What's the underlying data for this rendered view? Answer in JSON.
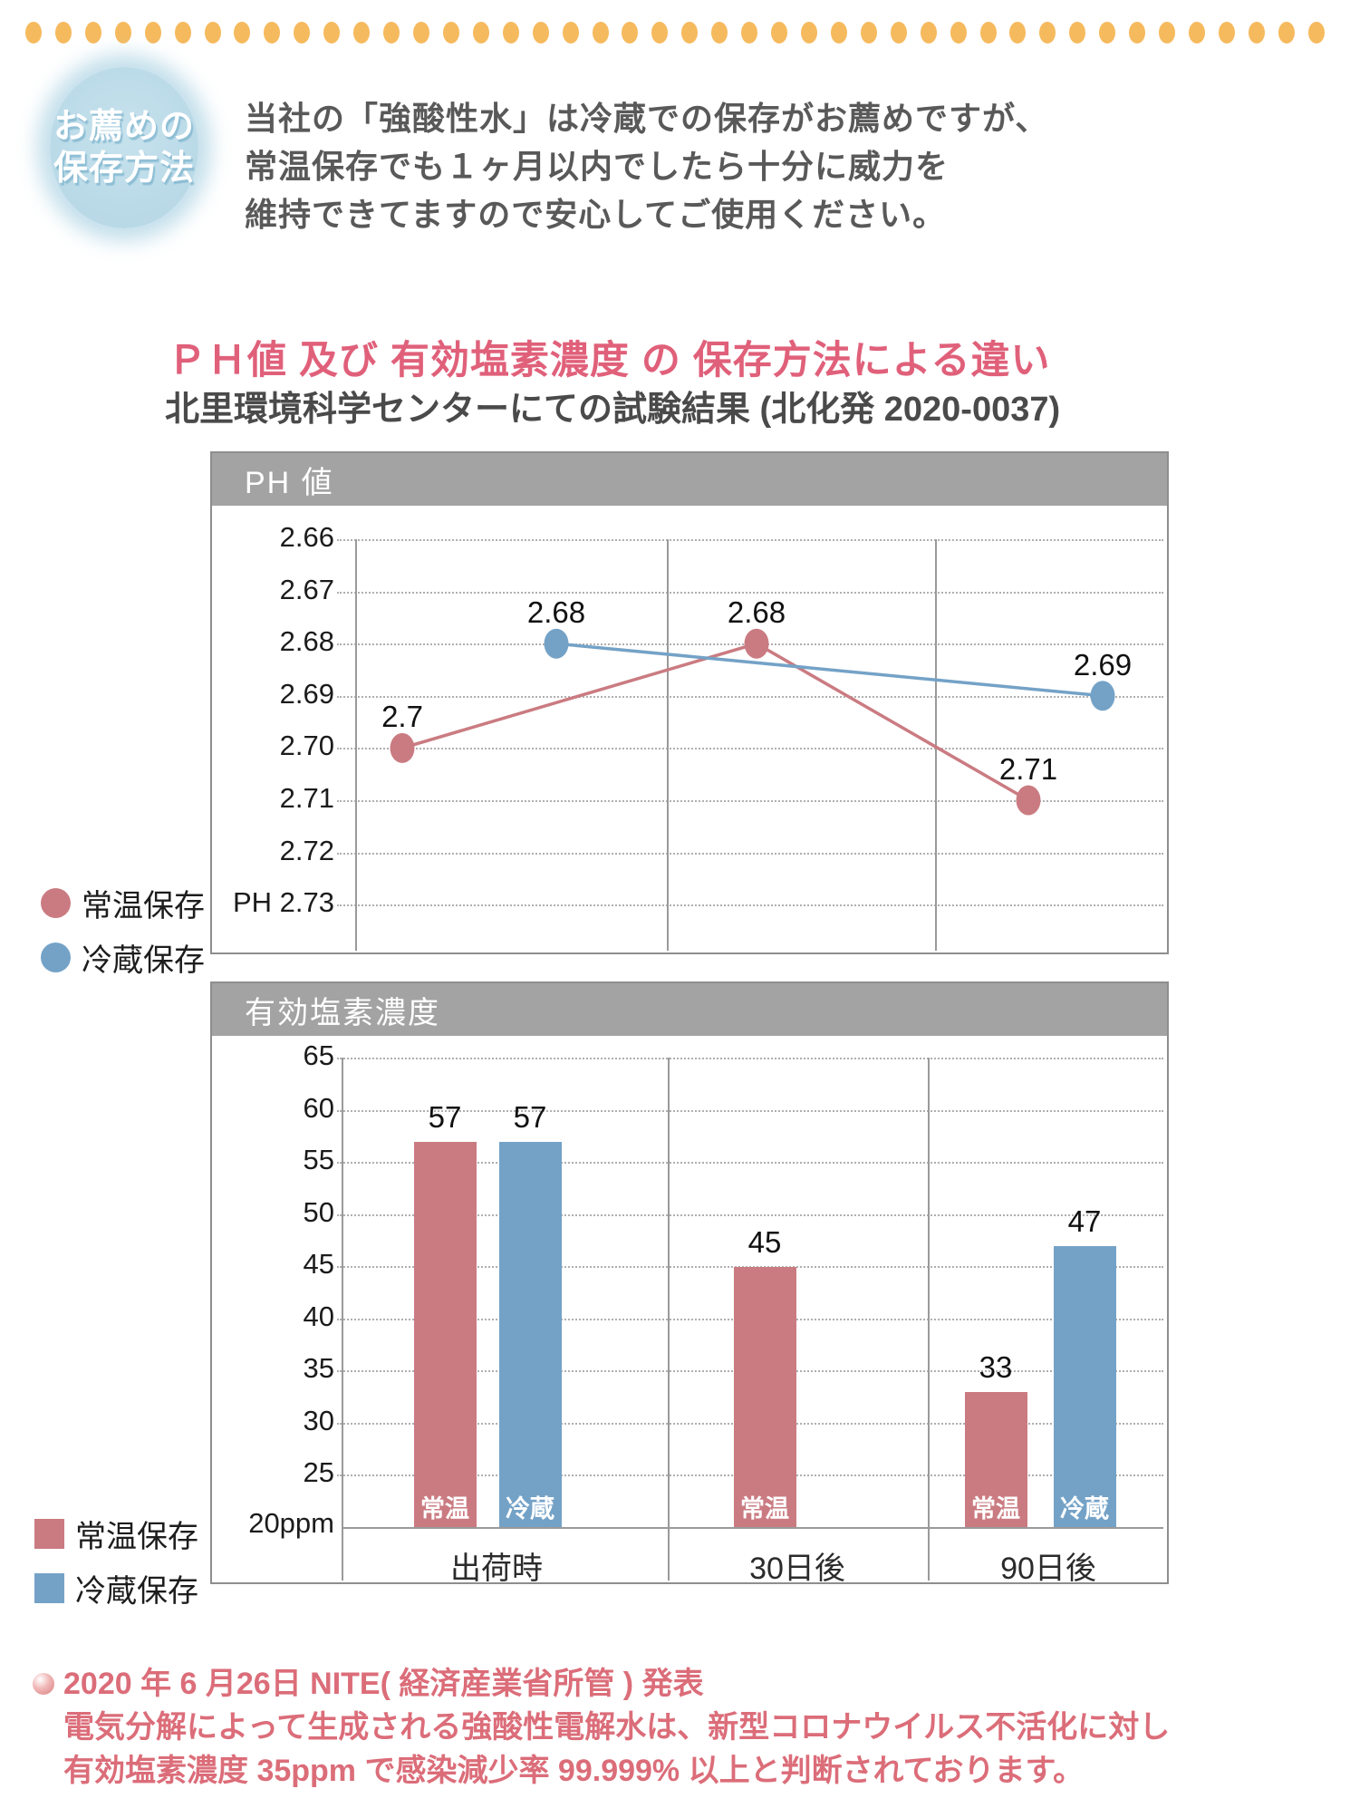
{
  "page": {
    "badge": {
      "line1": "お薦めの",
      "line2": "保存方法"
    },
    "intro_lines": [
      "当社の「強酸性水」は冷蔵での保存がお薦めですが、",
      "常温保存でも１ヶ月以内でしたら十分に威力を",
      "維持できてますので安心してご使用ください。"
    ],
    "title": "ＰＨ値 及び 有効塩素濃度 の 保存方法による違い",
    "subtitle": "北里環境科学センターにての試験結果 (北化発 2020-0037)",
    "note": {
      "line1": "2020 年 6 月26日 NITE( 経済産業省所管 ) 発表",
      "line2": "電気分解によって生成される強酸性電解水は、新型コロナウイルス不活化に対し",
      "line3": "有効塩素濃度 35ppm で感染減少率 99.999% 以上と判断されております。"
    }
  },
  "legend": {
    "room": "常温保存",
    "cold": "冷蔵保存"
  },
  "colors": {
    "red_series": "#CA7B81",
    "blue_series": "#74A2C7",
    "title_pink": "#E0607A",
    "note_pink": "#DB6D79",
    "header_gray": "#A3A3A3",
    "dot_orange": "#F6BA5E"
  },
  "decoration": {
    "dot_count": 44
  },
  "chart_data": [
    {
      "type": "line",
      "title": "PH 値",
      "categories": [
        "出荷時",
        "30日後",
        "90日後"
      ],
      "y_ticks": [
        "2.66",
        "2.67",
        "2.68",
        "2.69",
        "2.70",
        "2.71",
        "2.72",
        "PH 2.73"
      ],
      "ylim": [
        2.66,
        2.73
      ],
      "y_axis_inverted": true,
      "grid": true,
      "legend_position": "left-bottom",
      "series": [
        {
          "name": "常温保存",
          "color_key": "red_series",
          "marker": "circle",
          "values": [
            2.7,
            2.68,
            2.71
          ],
          "labels": [
            "2.7",
            "2.68",
            "2.71"
          ]
        },
        {
          "name": "冷蔵保存",
          "color_key": "blue_series",
          "marker": "circle",
          "values": [
            2.68,
            null,
            2.69
          ],
          "labels": [
            "2.68",
            null,
            "2.69"
          ]
        }
      ]
    },
    {
      "type": "bar",
      "title": "有効塩素濃度",
      "categories": [
        "出荷時",
        "30日後",
        "90日後"
      ],
      "y_ticks": [
        65,
        60,
        55,
        50,
        45,
        40,
        35,
        30,
        25
      ],
      "baseline_label": "20ppm",
      "ylim": [
        20,
        65
      ],
      "grid": true,
      "legend_position": "left-bottom",
      "series": [
        {
          "name": "常温保存",
          "short": "常温",
          "color_key": "red_series",
          "values": [
            57,
            45,
            33
          ]
        },
        {
          "name": "冷蔵保存",
          "short": "冷蔵",
          "color_key": "blue_series",
          "values": [
            57,
            null,
            47
          ]
        }
      ]
    }
  ]
}
